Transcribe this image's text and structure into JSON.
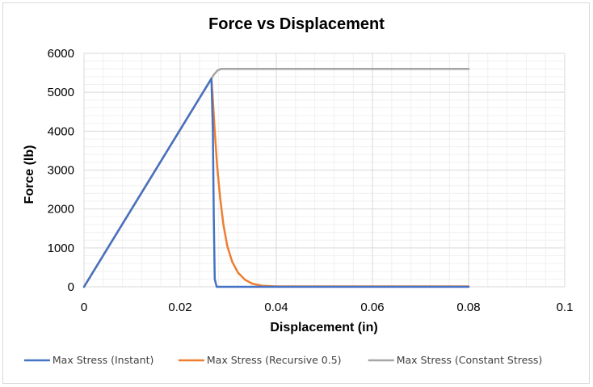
{
  "chart_data": {
    "type": "line",
    "title": "Force vs Displacement",
    "xlabel": "Displacement (in)",
    "ylabel": "Force (lb)",
    "xlim": [
      0,
      0.1
    ],
    "ylim": [
      0,
      6000
    ],
    "x_ticks": [
      0,
      0.02,
      0.04,
      0.06,
      0.08,
      0.1
    ],
    "x_tick_labels": [
      "0",
      "0.02",
      "0.04",
      "0.06",
      "0.08",
      "0.1"
    ],
    "y_ticks": [
      0,
      1000,
      2000,
      3000,
      4000,
      5000,
      6000
    ],
    "y_tick_labels": [
      "0",
      "1000",
      "2000",
      "3000",
      "4000",
      "5000",
      "6000"
    ],
    "grid": true,
    "legend_position": "bottom",
    "series": [
      {
        "name": "Max Stress (Instant)",
        "color": "#4472c4",
        "x": [
          0,
          0.0265,
          0.0268,
          0.027,
          0.0272,
          0.0276,
          0.08
        ],
        "y": [
          0,
          5350,
          4000,
          1800,
          200,
          0,
          0
        ]
      },
      {
        "name": "Max Stress (Recursive 0.5)",
        "color": "#ed7d31",
        "x": [
          0,
          0.0265,
          0.0268,
          0.0272,
          0.0277,
          0.0283,
          0.029,
          0.0298,
          0.0308,
          0.032,
          0.0335,
          0.035,
          0.037,
          0.04,
          0.08
        ],
        "y": [
          0,
          5350,
          4800,
          4000,
          3100,
          2300,
          1600,
          1050,
          650,
          370,
          180,
          80,
          30,
          10,
          10
        ]
      },
      {
        "name": "Max Stress (Constant Stress)",
        "color": "#a5a5a5",
        "x": [
          0,
          0.026,
          0.027,
          0.0278,
          0.0285,
          0.029,
          0.08
        ],
        "y": [
          0,
          5250,
          5450,
          5560,
          5600,
          5600,
          5600
        ]
      }
    ]
  }
}
